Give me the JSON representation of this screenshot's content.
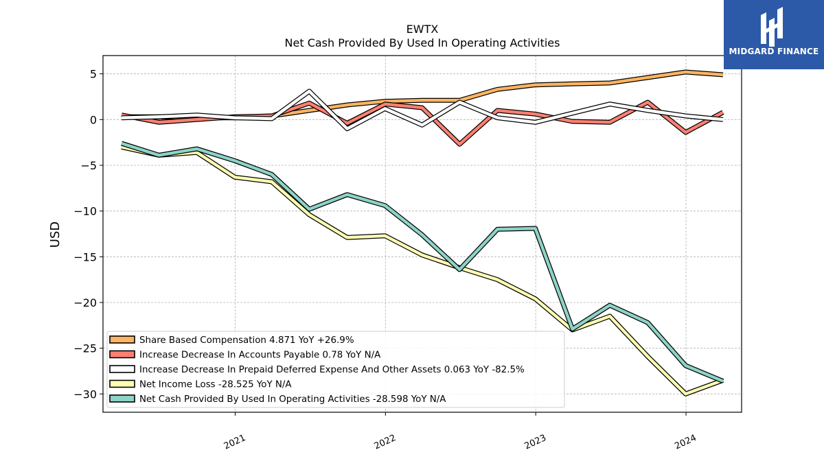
{
  "brand": {
    "name": "MIDGARD FINANCE",
    "bg_color": "#2c5aa8"
  },
  "chart_data": {
    "type": "line",
    "title": "EWTX",
    "subtitle": "Net Cash Provided By Used In Operating Activities",
    "ylabel": "USD",
    "xlabel": "",
    "ylim": [
      -32,
      7
    ],
    "yticks": [
      5,
      0,
      -5,
      -10,
      -15,
      -20,
      -25,
      -30
    ],
    "ytick_labels": [
      "5",
      "0",
      "−5",
      "−10",
      "−15",
      "−20",
      "−25",
      "−30"
    ],
    "xlim": [
      "2020-02-15",
      "2024-05-15"
    ],
    "xticks": [
      "2021-01-01",
      "2022-01-01",
      "2023-01-01",
      "2024-01-01"
    ],
    "xtick_labels": [
      "2021",
      "2022",
      "2023",
      "2024"
    ],
    "grid": true,
    "legend_position": "bottom-left",
    "x": [
      "2020-03-31",
      "2020-06-30",
      "2020-09-30",
      "2020-12-31",
      "2021-03-31",
      "2021-06-30",
      "2021-09-30",
      "2021-12-31",
      "2022-03-31",
      "2022-06-30",
      "2022-09-30",
      "2022-12-31",
      "2023-03-31",
      "2023-06-30",
      "2023-09-30",
      "2023-12-31",
      "2024-03-31"
    ],
    "series": [
      {
        "name": "Share Based Compensation",
        "legend": "Share Based Compensation  4.871 YoY +26.9%",
        "color": "#fdb462",
        "values": [
          0.3,
          0.3,
          0.2,
          0.2,
          0.4,
          1.0,
          1.6,
          2.0,
          2.1,
          2.1,
          3.3,
          3.8,
          3.9,
          4.0,
          4.6,
          5.2,
          4.9
        ]
      },
      {
        "name": "Increase Decrease In Accounts Payable",
        "legend": "Increase Decrease In Accounts Payable  0.78 YoY N/A",
        "color": "#fb8072",
        "values": [
          0.5,
          -0.3,
          0.0,
          0.3,
          0.4,
          1.8,
          -0.4,
          1.7,
          1.3,
          -2.7,
          1.0,
          0.6,
          -0.2,
          -0.3,
          1.9,
          -1.4,
          0.8
        ]
      },
      {
        "name": "Increase Decrease In Prepaid Deferred Expense And Other Assets",
        "legend": "Increase Decrease In Prepaid Deferred Expense And Other Assets  0.063 YoY -82.5%",
        "color": "#ffffff",
        "values": [
          0.2,
          0.3,
          0.5,
          0.2,
          0.1,
          3.1,
          -1.0,
          1.2,
          -0.6,
          1.9,
          0.2,
          -0.3,
          0.7,
          1.7,
          1.0,
          0.4,
          0.0
        ]
      },
      {
        "name": "Net Income Loss",
        "legend": "Net Income Loss  -28.525 YoY N/A",
        "color": "#ffffb3",
        "values": [
          -3.0,
          -3.9,
          -3.6,
          -6.3,
          -6.8,
          -10.4,
          -12.9,
          -12.7,
          -14.8,
          -16.2,
          -17.5,
          -19.6,
          -23.0,
          -21.5,
          -25.9,
          -30.0,
          -28.5
        ]
      },
      {
        "name": "Net Cash Provided By Used In Operating Activities",
        "legend": "Net Cash Provided By Used In Operating Activities  -28.598 YoY N/A",
        "color": "#8dd3c7",
        "values": [
          -2.6,
          -3.9,
          -3.2,
          -4.5,
          -6.0,
          -9.8,
          -8.2,
          -9.4,
          -12.6,
          -16.4,
          -12.0,
          -11.9,
          -22.9,
          -20.3,
          -22.2,
          -26.9,
          -28.6
        ]
      }
    ]
  }
}
